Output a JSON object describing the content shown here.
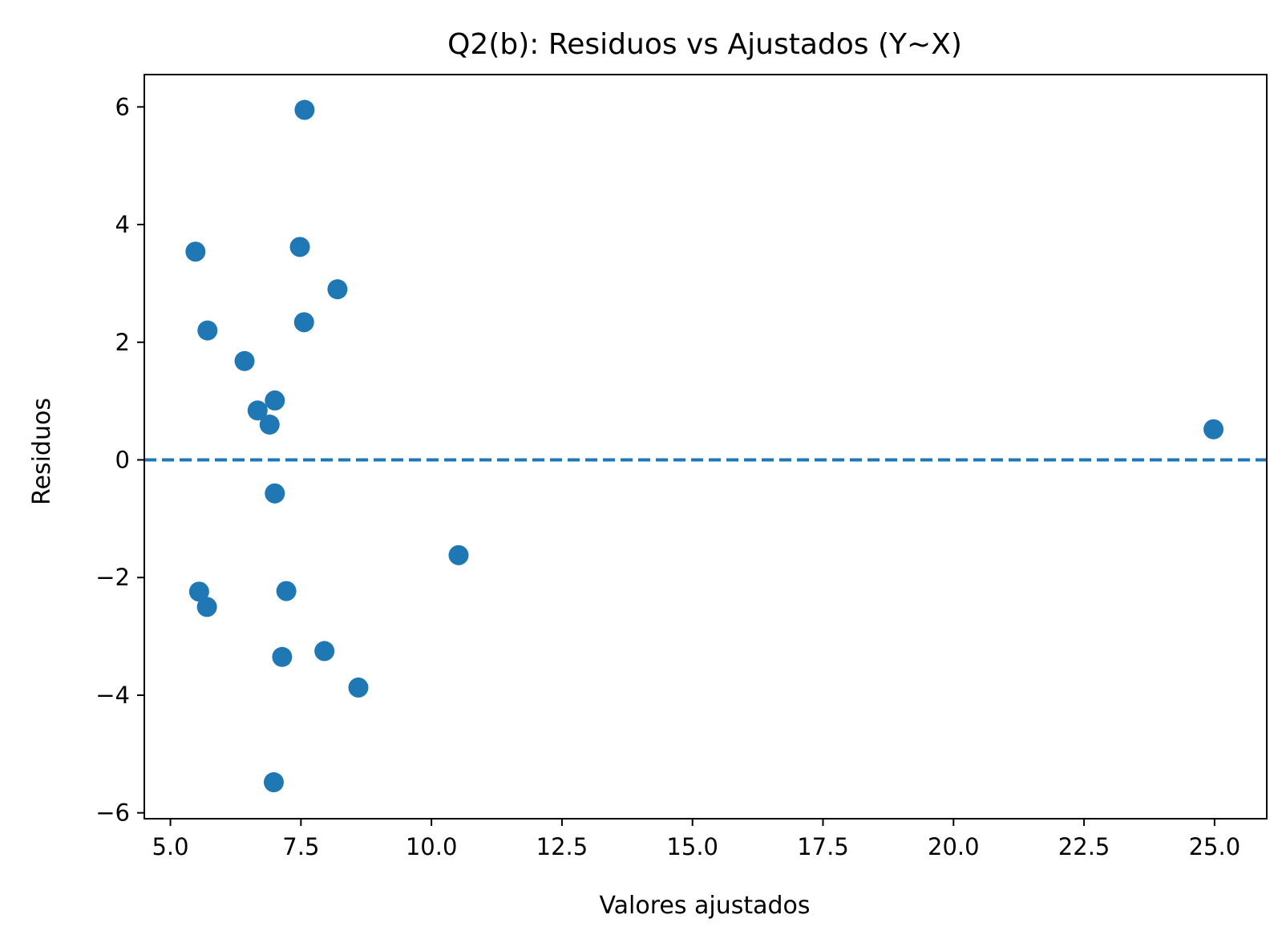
{
  "chart_data": {
    "type": "scatter",
    "title": "Q2(b): Residuos vs Ajustados (Y~X)",
    "xlabel": "Valores ajustados",
    "ylabel": "Residuos",
    "xlim": [
      4.5,
      26.0
    ],
    "ylim": [
      -6.1,
      6.55
    ],
    "xticks": [
      5.0,
      7.5,
      10.0,
      12.5,
      15.0,
      17.5,
      20.0,
      22.5,
      25.0
    ],
    "xtick_labels": [
      "5.0",
      "7.5",
      "10.0",
      "12.5",
      "15.0",
      "17.5",
      "20.0",
      "22.5",
      "25.0"
    ],
    "yticks": [
      -6,
      -4,
      -2,
      0,
      2,
      4,
      6
    ],
    "ytick_labels": [
      "−6",
      "−4",
      "−2",
      "0",
      "2",
      "4",
      "6"
    ],
    "grid": false,
    "reference_line": {
      "y": 0,
      "style": "dashed"
    },
    "marker_color": "#1f77b4",
    "points": [
      {
        "x": 7.57,
        "y": 5.95
      },
      {
        "x": 5.48,
        "y": 3.54
      },
      {
        "x": 7.48,
        "y": 3.62
      },
      {
        "x": 8.2,
        "y": 2.9
      },
      {
        "x": 7.56,
        "y": 2.34
      },
      {
        "x": 5.71,
        "y": 2.2
      },
      {
        "x": 6.42,
        "y": 1.68
      },
      {
        "x": 7.0,
        "y": 1.01
      },
      {
        "x": 6.67,
        "y": 0.84
      },
      {
        "x": 6.9,
        "y": 0.6
      },
      {
        "x": 24.98,
        "y": 0.52
      },
      {
        "x": 7.0,
        "y": -0.57
      },
      {
        "x": 10.52,
        "y": -1.62
      },
      {
        "x": 5.55,
        "y": -2.24
      },
      {
        "x": 7.22,
        "y": -2.23
      },
      {
        "x": 5.7,
        "y": -2.5
      },
      {
        "x": 7.95,
        "y": -3.25
      },
      {
        "x": 7.14,
        "y": -3.35
      },
      {
        "x": 8.6,
        "y": -3.87
      },
      {
        "x": 6.98,
        "y": -5.48
      }
    ]
  }
}
